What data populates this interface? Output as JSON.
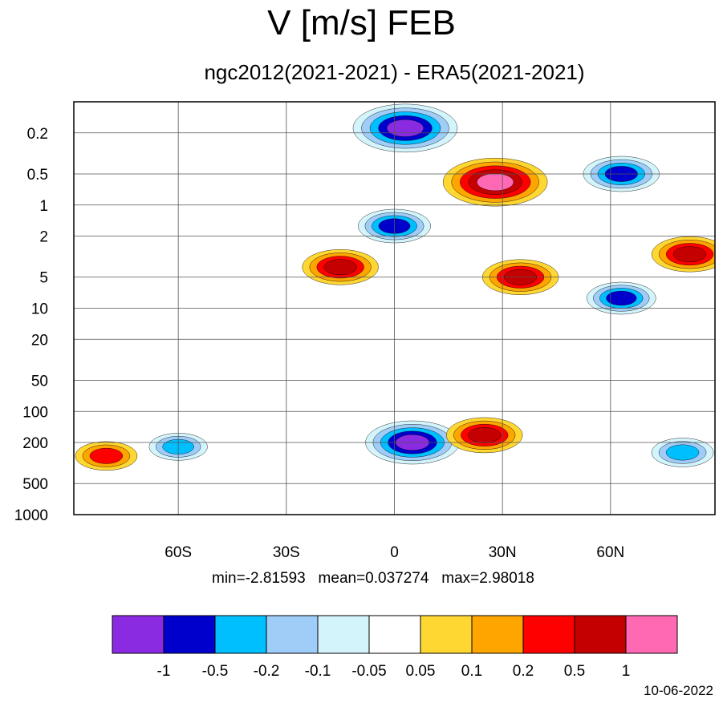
{
  "chart_data": {
    "type": "heatmap",
    "title": "V [m/s] FEB",
    "subtitle": "ngc2012(2021-2021) - ERA5(2021-2021)",
    "x_ticks": [
      "60S",
      "30S",
      "0",
      "30N",
      "60N"
    ],
    "x_tick_values": [
      -60,
      -30,
      0,
      30,
      60
    ],
    "xlim": [
      -89,
      89
    ],
    "y_ticks": [
      "0.2",
      "0.5",
      "1",
      "2",
      "5",
      "10",
      "20",
      "50",
      "100",
      "200",
      "500",
      "1000"
    ],
    "y_tick_values": [
      0.2,
      0.5,
      1,
      2,
      5,
      10,
      20,
      50,
      100,
      200,
      500,
      1000
    ],
    "ylim": [
      0.1,
      1000
    ],
    "y_scale": "log, inverted",
    "colorbar": {
      "levels": [
        "-1",
        "-0.5",
        "-0.2",
        "-0.1",
        "-0.05",
        "0.05",
        "0.1",
        "0.2",
        "0.5",
        "1"
      ],
      "colors": [
        "#8a2be2",
        "#0000cd",
        "#00bfff",
        "#a0cdf8",
        "#d4f4fc",
        "#ffffff",
        "#ffd732",
        "#ffa500",
        "#ff0000",
        "#c40000",
        "#ff69b4"
      ]
    },
    "stats": "min=-2.81593   mean=0.037274   max=2.98018",
    "date": "10-06-2022",
    "features": [
      {
        "lat": 3,
        "p": 0.18,
        "value": -1.5
      },
      {
        "lat": 28,
        "p": 0.6,
        "value": 1.5
      },
      {
        "lat": 0,
        "p": 1.6,
        "value": -0.6
      },
      {
        "lat": -15,
        "p": 4,
        "value": 0.7
      },
      {
        "lat": 35,
        "p": 5,
        "value": 0.7
      },
      {
        "lat": 63,
        "p": 0.5,
        "value": -0.7
      },
      {
        "lat": 63,
        "p": 8,
        "value": -0.5
      },
      {
        "lat": 82,
        "p": 3,
        "value": 0.7
      },
      {
        "lat": 5,
        "p": 200,
        "value": -1.2
      },
      {
        "lat": 25,
        "p": 170,
        "value": 0.7
      },
      {
        "lat": -60,
        "p": 220,
        "value": -0.2
      },
      {
        "lat": -80,
        "p": 270,
        "value": 0.3
      },
      {
        "lat": 80,
        "p": 250,
        "value": -0.3
      }
    ]
  }
}
